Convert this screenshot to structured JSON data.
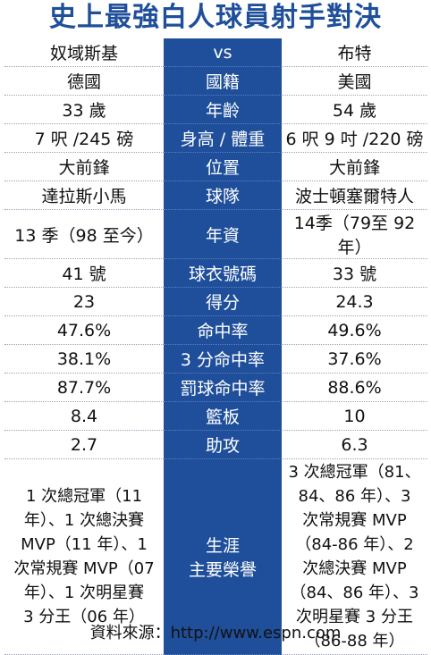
{
  "title": "史上最強白人球員射手對決",
  "rows": [
    {
      "left": "奴域斯基",
      "label": "vs",
      "right": "布特"
    },
    {
      "left": "德國",
      "label": "國籍",
      "right": "美國"
    },
    {
      "left": "33 歲",
      "label": "年齡",
      "right": "54 歲"
    },
    {
      "left": "7 呎 /245 磅",
      "label": "身高 / 體重",
      "right": "6 呎 9 吋 /220 磅"
    },
    {
      "left": "大前鋒",
      "label": "位置",
      "right": "大前鋒"
    },
    {
      "left": "達拉斯小馬",
      "label": "球隊",
      "right": "波士頓塞爾特人"
    },
    {
      "left": "13 季（98 至今）",
      "label": "年資",
      "right": "14季（79至 92年）"
    },
    {
      "left": "41 號",
      "label": "球衣號碼",
      "right": "33 號"
    },
    {
      "left": "23",
      "label": "得分",
      "right": "24.3"
    },
    {
      "left": "47.6%",
      "label": "命中率",
      "right": "49.6%"
    },
    {
      "left": "38.1%",
      "label": "3 分命中率",
      "right": "37.6%"
    },
    {
      "left": "87.7%",
      "label": "罰球命中率",
      "right": "88.6%"
    },
    {
      "left": "8.4",
      "label": "籃板",
      "right": "10"
    },
    {
      "left": "2.7",
      "label": "助攻",
      "right": "6.3"
    }
  ],
  "honors": {
    "label_line1": "生涯",
    "label_line2": "主要榮譽",
    "left_lines": [
      "1 次總冠軍（11",
      "年）、1 次總決賽",
      "MVP（11 年）、1",
      "次常規賽 MVP（07",
      "年）、1 次明星賽",
      "3 分王（06 年）"
    ],
    "right_lines": [
      "3 次總冠軍（81、",
      "84、86 年）、3",
      "次常規賽 MVP",
      "（84-86 年）、2",
      "次總決賽 MVP",
      "（84、86 年）、3",
      "次明星賽 3 分王",
      "（86-88 年）"
    ]
  },
  "source": "資料來源：http://www.espn.com",
  "colors": {
    "accent": "#1f4f9a"
  }
}
